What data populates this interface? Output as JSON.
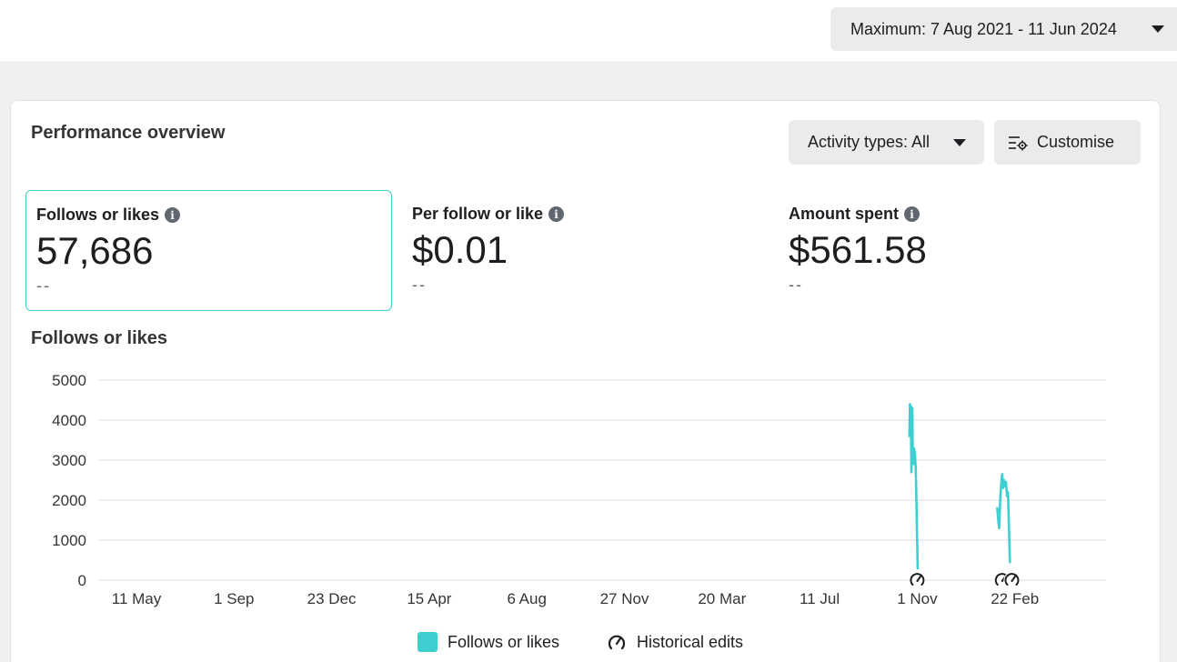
{
  "date_range": {
    "label": "Maximum: 7 Aug 2021 - 11 Jun 2024"
  },
  "card": {
    "title": "Performance overview",
    "activity_types_label": "Activity types: All",
    "customise_label": "Customise"
  },
  "metrics": [
    {
      "label": "Follows or likes",
      "value": "57,686",
      "delta": "--"
    },
    {
      "label": "Per follow or like",
      "value": "$0.01",
      "delta": "--"
    },
    {
      "label": "Amount spent",
      "value": "$561.58",
      "delta": "--"
    }
  ],
  "chart_title": "Follows or likes",
  "chart_data": {
    "type": "line",
    "title": "Follows or likes",
    "xlabel": "",
    "ylabel": "",
    "ylim": [
      0,
      5000
    ],
    "y_ticks": [
      "5000",
      "4000",
      "3000",
      "2000",
      "1000",
      "0"
    ],
    "x_ticks": [
      "11 May",
      "1 Sep",
      "23 Dec",
      "15 Apr",
      "6 Aug",
      "27 Nov",
      "20 Mar",
      "11 Jul",
      "1 Nov",
      "22 Feb"
    ],
    "grid": true,
    "color": "#3ecfd0",
    "series": [
      {
        "name": "Follows or likes",
        "segments": [
          {
            "x_index": [
              7.92,
              7.925,
              7.93,
              7.935,
              7.94,
              7.945,
              7.95,
              7.955,
              7.96,
              7.965,
              7.975,
              7.985,
              7.995,
              8.005
            ],
            "y": [
              3600,
              4400,
              4000,
              4350,
              2700,
              3500,
              4300,
              3000,
              2900,
              3300,
              3200,
              2800,
              1500,
              300
            ]
          },
          {
            "x_index": [
              8.82,
              8.83,
              8.84,
              8.85,
              8.86,
              8.87,
              8.88,
              8.89,
              8.9,
              8.91,
              8.92,
              8.93,
              8.94,
              8.95
            ],
            "y": [
              1800,
              1500,
              1300,
              2000,
              2400,
              2650,
              2300,
              2500,
              2350,
              2450,
              2100,
              2200,
              1300,
              450
            ]
          }
        ]
      }
    ],
    "historical_edit_markers": [
      8.0,
      8.87,
      8.97
    ]
  },
  "legend": [
    {
      "label": "Follows or likes",
      "icon": "teal-square"
    },
    {
      "label": "Historical edits",
      "icon": "gauge-icon"
    }
  ]
}
